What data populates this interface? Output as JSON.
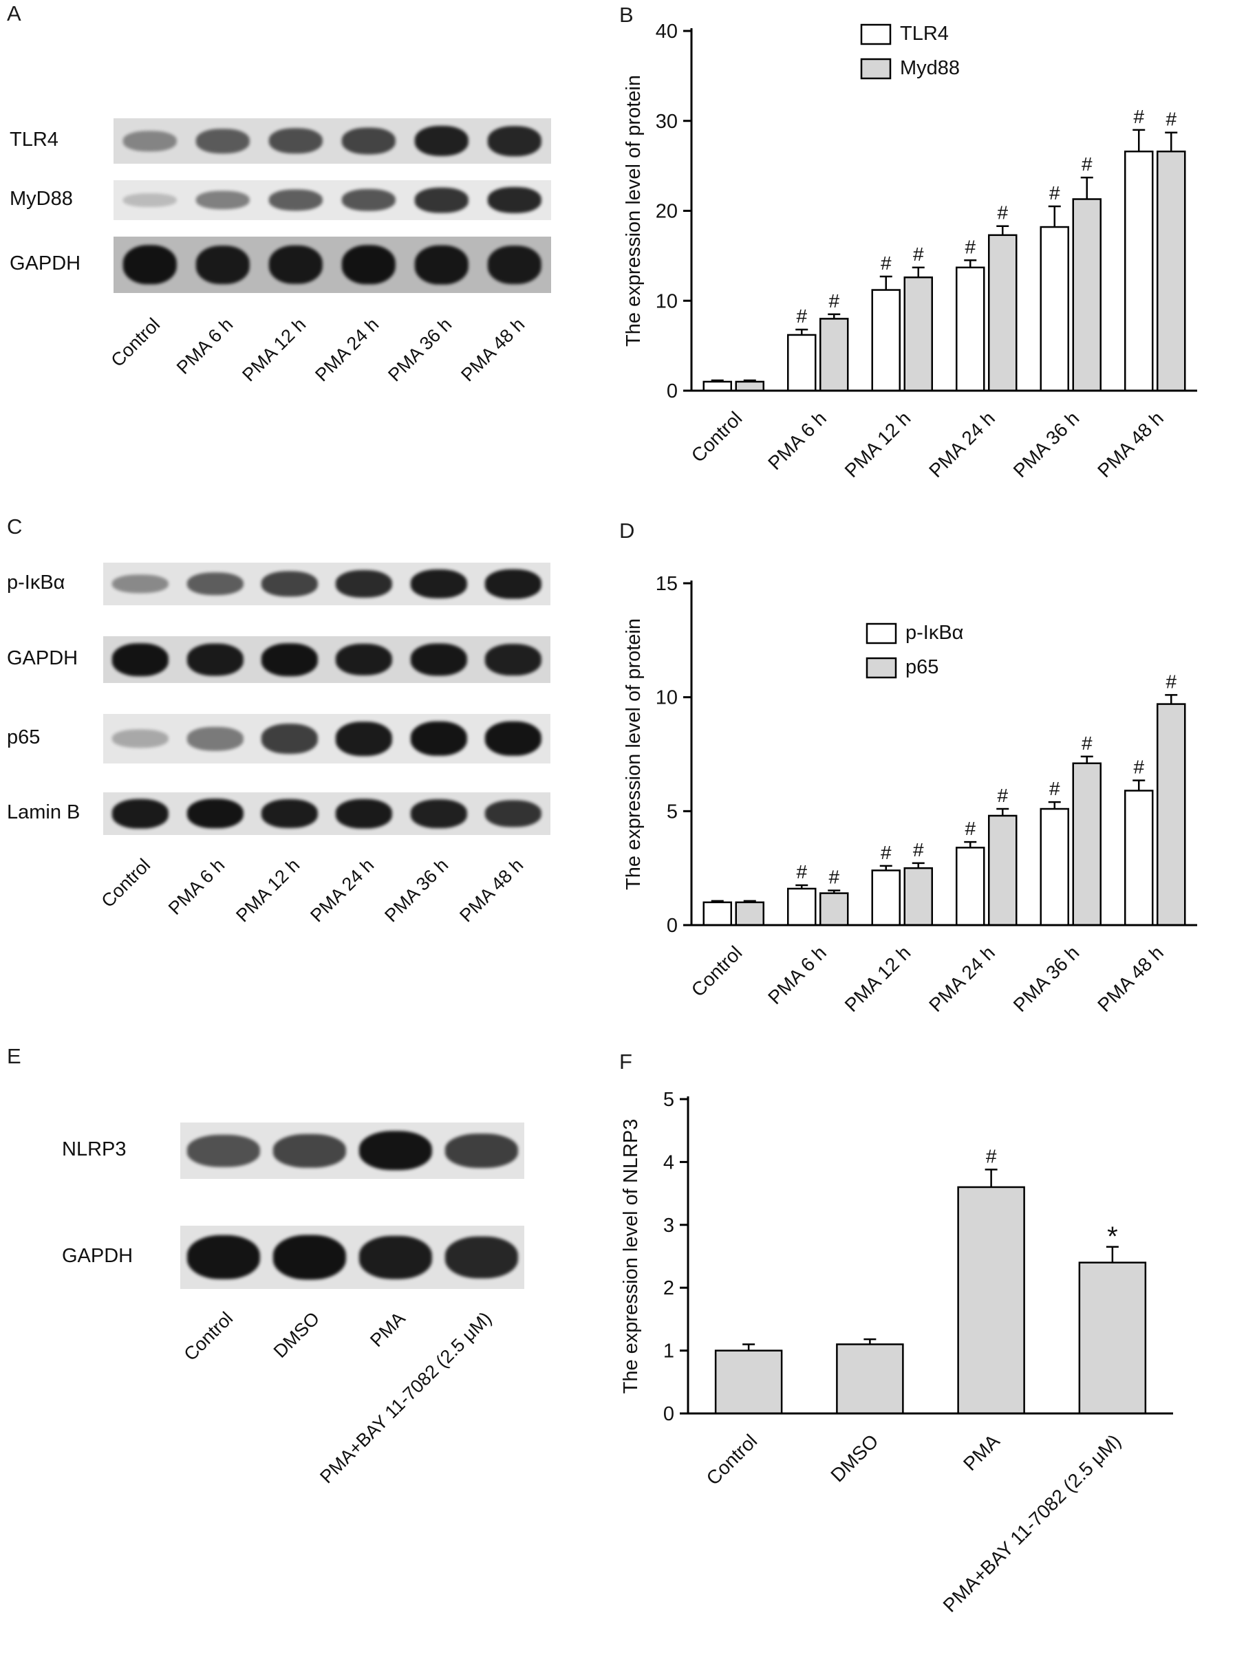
{
  "panels": {
    "A": {
      "label": "A",
      "type": "blot",
      "rows": [
        {
          "label": "TLR4",
          "strip_bg": "#dcdcdc",
          "bands": [
            0.32,
            0.55,
            0.62,
            0.68,
            0.88,
            0.85
          ]
        },
        {
          "label": "MyD88",
          "strip_bg": "#e8e8e8",
          "bands": [
            0.06,
            0.38,
            0.55,
            0.6,
            0.78,
            0.85
          ]
        },
        {
          "label": "GAPDH",
          "strip_bg": "#b9b9b9",
          "bands": [
            0.95,
            0.9,
            0.92,
            0.95,
            0.93,
            0.9
          ]
        }
      ],
      "lanes": [
        "Control",
        "PMA 6 h",
        "PMA 12 h",
        "PMA 24 h",
        "PMA 36 h",
        "PMA 48 h"
      ]
    },
    "B": {
      "label": "B",
      "type": "chart",
      "chart_ref": 0
    },
    "C": {
      "label": "C",
      "type": "blot",
      "rows": [
        {
          "label": "p-IκBα",
          "strip_bg": "#e3e3e3",
          "bands": [
            0.3,
            0.55,
            0.7,
            0.82,
            0.9,
            0.92
          ]
        },
        {
          "label": "GAPDH",
          "strip_bg": "#d8d8d8",
          "bands": [
            0.95,
            0.92,
            0.95,
            0.9,
            0.93,
            0.88
          ]
        },
        {
          "label": "p65",
          "strip_bg": "#e6e6e6",
          "bands": [
            0.15,
            0.4,
            0.72,
            0.92,
            0.95,
            0.95
          ]
        },
        {
          "label": "Lamin B",
          "strip_bg": "#e0e0e0",
          "bands": [
            0.92,
            0.95,
            0.9,
            0.92,
            0.88,
            0.78
          ]
        }
      ],
      "lanes": [
        "Control",
        "PMA 6 h",
        "PMA 12 h",
        "PMA 24 h",
        "PMA 36 h",
        "PMA 48 h"
      ]
    },
    "D": {
      "label": "D",
      "type": "chart",
      "chart_ref": 1
    },
    "E": {
      "label": "E",
      "type": "blot",
      "rows": [
        {
          "label": "NLRP3",
          "strip_bg": "#e4e4e4",
          "bands": [
            0.62,
            0.68,
            0.95,
            0.72
          ]
        },
        {
          "label": "GAPDH",
          "strip_bg": "#e2e2e2",
          "bands": [
            0.95,
            0.97,
            0.9,
            0.85
          ]
        }
      ],
      "lanes": [
        "Control",
        "DMSO",
        "PMA",
        "PMA+BAY 11-7082 (2.5 μM)"
      ]
    },
    "F": {
      "label": "F",
      "type": "chart",
      "chart_ref": 2
    }
  },
  "chart_data": [
    {
      "panel": "B",
      "type": "bar",
      "title": "",
      "xlabel": "",
      "ylabel": "The expression level of protein",
      "ylim": [
        0,
        40
      ],
      "yticks": [
        0,
        10,
        20,
        30,
        40
      ],
      "grid": false,
      "legend_position": "top",
      "categories": [
        "Control",
        "PMA 6 h",
        "PMA 12 h",
        "PMA 24 h",
        "PMA 36 h",
        "PMA 48 h"
      ],
      "series": [
        {
          "name": "TLR4",
          "fill": "#ffffff",
          "values": [
            1.0,
            6.2,
            11.2,
            13.7,
            18.2,
            26.6
          ],
          "errors": [
            0.15,
            0.6,
            1.5,
            0.8,
            2.3,
            2.4
          ],
          "annotations": [
            "",
            "#",
            "#",
            "#",
            "#",
            "#"
          ]
        },
        {
          "name": "Myd88",
          "fill": "#d6d6d6",
          "values": [
            1.0,
            8.0,
            12.6,
            17.3,
            21.3,
            26.6
          ],
          "errors": [
            0.15,
            0.5,
            1.1,
            1.0,
            2.4,
            2.1
          ],
          "annotations": [
            "",
            "#",
            "#",
            "#",
            "#",
            "#"
          ]
        }
      ]
    },
    {
      "panel": "D",
      "type": "bar",
      "title": "",
      "xlabel": "",
      "ylabel": "The expression level of protein",
      "ylim": [
        0,
        15
      ],
      "yticks": [
        0,
        5,
        10,
        15
      ],
      "grid": false,
      "legend_position": "top",
      "categories": [
        "Control",
        "PMA 6 h",
        "PMA 12 h",
        "PMA 24 h",
        "PMA 36 h",
        "PMA 48 h"
      ],
      "series": [
        {
          "name": "p-IκBα",
          "fill": "#ffffff",
          "values": [
            1.0,
            1.6,
            2.4,
            3.4,
            5.1,
            5.9
          ],
          "errors": [
            0.06,
            0.15,
            0.2,
            0.25,
            0.3,
            0.45
          ],
          "annotations": [
            "",
            "#",
            "#",
            "#",
            "#",
            "#"
          ]
        },
        {
          "name": "p65",
          "fill": "#d6d6d6",
          "values": [
            1.0,
            1.4,
            2.5,
            4.8,
            7.1,
            9.7
          ],
          "errors": [
            0.06,
            0.12,
            0.22,
            0.3,
            0.3,
            0.4
          ],
          "annotations": [
            "",
            "#",
            "#",
            "#",
            "#",
            "#"
          ]
        }
      ]
    },
    {
      "panel": "F",
      "type": "bar",
      "title": "",
      "xlabel": "",
      "ylabel": "The expression level of NLRP3",
      "ylim": [
        0,
        5
      ],
      "yticks": [
        0,
        1,
        2,
        3,
        4,
        5
      ],
      "grid": false,
      "legend_position": "none",
      "categories": [
        "Control",
        "DMSO",
        "PMA",
        "PMA+BAY 11-7082 (2.5 μM)"
      ],
      "series": [
        {
          "name": "NLRP3",
          "fill": "#d6d6d6",
          "values": [
            1.0,
            1.1,
            3.6,
            2.4
          ],
          "errors": [
            0.1,
            0.08,
            0.28,
            0.25
          ],
          "annotations": [
            "",
            "",
            "#",
            "*"
          ]
        }
      ]
    }
  ],
  "colors": {
    "bar_outline": "#000000",
    "bar_gray": "#d6d6d6",
    "bar_white": "#ffffff",
    "text": "#111111"
  }
}
